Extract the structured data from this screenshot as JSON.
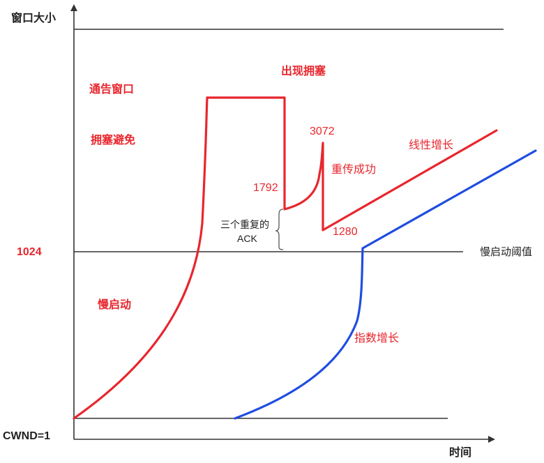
{
  "axes": {
    "y_title": "窗口大小",
    "x_title": "时间",
    "origin_label": "CWND=1"
  },
  "levels": {
    "threshold_value": "1024",
    "threshold_label": "慢启动阈值"
  },
  "annotations": {
    "advertised_window": "通告窗口",
    "congestion_avoidance": "拥塞避免",
    "congestion_occurs": "出现拥塞",
    "slow_start": "慢启动",
    "value_3072": "3072",
    "value_1792": "1792",
    "value_1280": "1280",
    "retransmit_success": "重传成功",
    "linear_growth": "线性增长",
    "dup_ack_line1": "三个重复的",
    "dup_ack_line2": "ACK",
    "exponential_growth": "指数增长"
  },
  "colors": {
    "red_curve": "#e8262d",
    "blue_curve": "#1f4de0",
    "label_red": "#e8262d",
    "axis": "#333333",
    "text": "#222222"
  }
}
